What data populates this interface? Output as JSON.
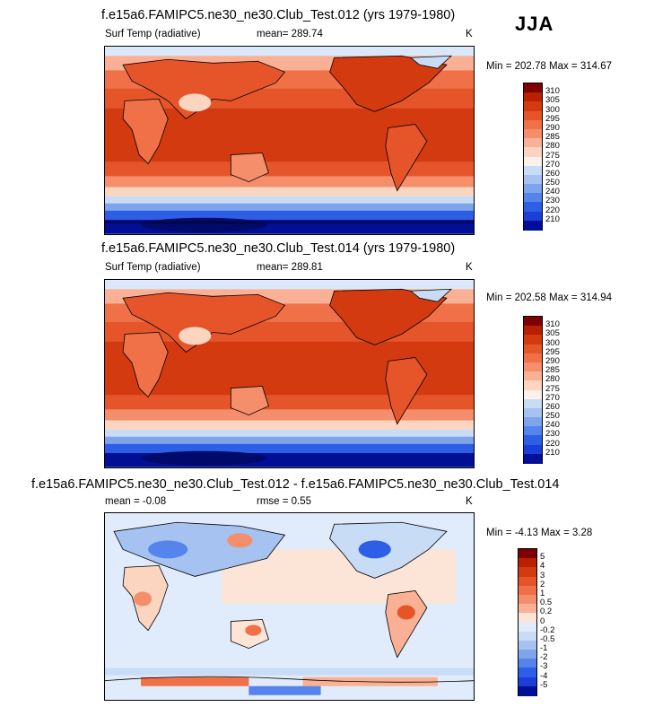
{
  "season": "JJA",
  "panels": [
    {
      "title": "f.e15a6.FAMIPC5.ne30_ne30.Club_Test.012 (yrs 1979-1980)",
      "left_label": "Surf Temp (radiative)",
      "center_label": "mean= 289.74",
      "units": "K",
      "minmax": "Min = 202.78 Max = 314.67"
    },
    {
      "title": "f.e15a6.FAMIPC5.ne30_ne30.Club_Test.014 (yrs 1979-1980)",
      "left_label": "Surf Temp (radiative)",
      "center_label": "mean= 289.81",
      "units": "K",
      "minmax": "Min = 202.58 Max = 314.94"
    },
    {
      "title": "f.e15a6.FAMIPC5.ne30_ne30.Club_Test.012 - f.e15a6.FAMIPC5.ne30_ne30.Club_Test.014",
      "left_label": "mean =  -0.08",
      "center_label": "rmse =   0.55",
      "units": "K",
      "minmax": "Min =  -4.13 Max =   3.28"
    }
  ],
  "chart_data": [
    {
      "type": "heatmap",
      "title": "f.e15a6.FAMIPC5.ne30_ne30.Club_Test.012 (yrs 1979-1980)",
      "variable": "Surf Temp (radiative)",
      "units": "K",
      "mean": 289.74,
      "min": 202.78,
      "max": 314.67,
      "colorbar_levels": [
        310,
        305,
        300,
        295,
        290,
        285,
        280,
        275,
        270,
        260,
        250,
        240,
        230,
        220,
        210
      ],
      "colors": [
        "#7f0000",
        "#b82000",
        "#d43a10",
        "#e6552a",
        "#f07048",
        "#f58e6a",
        "#f9b094",
        "#fcd5c0",
        "#fbf0ea",
        "#c9dcf6",
        "#a6c2f0",
        "#7ea4ec",
        "#5584ec",
        "#2c5ee6",
        "#1a3fd8",
        "#000f96"
      ]
    },
    {
      "type": "heatmap",
      "title": "f.e15a6.FAMIPC5.ne30_ne30.Club_Test.014 (yrs 1979-1980)",
      "variable": "Surf Temp (radiative)",
      "units": "K",
      "mean": 289.81,
      "min": 202.58,
      "max": 314.94,
      "colorbar_levels": [
        310,
        305,
        300,
        295,
        290,
        285,
        280,
        275,
        270,
        260,
        250,
        240,
        230,
        220,
        210
      ],
      "colors": [
        "#7f0000",
        "#b82000",
        "#d43a10",
        "#e6552a",
        "#f07048",
        "#f58e6a",
        "#f9b094",
        "#fcd5c0",
        "#fbf0ea",
        "#c9dcf6",
        "#a6c2f0",
        "#7ea4ec",
        "#5584ec",
        "#2c5ee6",
        "#1a3fd8",
        "#000f96"
      ]
    },
    {
      "type": "heatmap",
      "title": "f.e15a6.FAMIPC5.ne30_ne30.Club_Test.012 - f.e15a6.FAMIPC5.ne30_ne30.Club_Test.014",
      "units": "K",
      "mean": -0.08,
      "rmse": 0.55,
      "min": -4.13,
      "max": 3.28,
      "colorbar_levels": [
        "5",
        "4",
        "3",
        "2",
        "1",
        "0.5",
        "0.2",
        "0",
        "-0.2",
        "-0.5",
        "-1",
        "-2",
        "-3",
        "-4",
        "-5"
      ],
      "colors": [
        "#7f0000",
        "#b82000",
        "#d43a10",
        "#e6552a",
        "#f07048",
        "#f58e6a",
        "#f9b094",
        "#fce4d6",
        "#e0ecfb",
        "#c9dcf6",
        "#a6c2f0",
        "#7ea4ec",
        "#5584ec",
        "#2c5ee6",
        "#1a3fd8",
        "#000f96"
      ]
    }
  ]
}
